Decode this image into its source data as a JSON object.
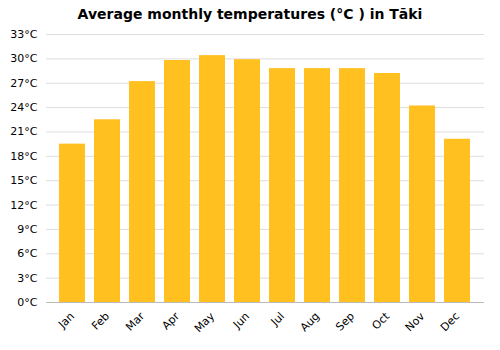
{
  "chart_data": {
    "type": "bar",
    "title": "Average monthly temperatures (°C ) in Tāki",
    "categories": [
      "Jan",
      "Feb",
      "Mar",
      "Apr",
      "May",
      "Jun",
      "Jul",
      "Aug",
      "Sep",
      "Oct",
      "Nov",
      "Dec"
    ],
    "values": [
      19.5,
      22.5,
      27.2,
      29.8,
      30.4,
      29.9,
      28.8,
      28.8,
      28.8,
      28.2,
      24.2,
      20.1
    ],
    "color": "#FFC020",
    "ylim": [
      0,
      33
    ],
    "yticks": [
      {
        "value": 0,
        "label": "0°C"
      },
      {
        "value": 3,
        "label": "3°C"
      },
      {
        "value": 6,
        "label": "6°C"
      },
      {
        "value": 9,
        "label": "9°C"
      },
      {
        "value": 12,
        "label": "12°C"
      },
      {
        "value": 15,
        "label": "15°C"
      },
      {
        "value": 18,
        "label": "18°C"
      },
      {
        "value": 21,
        "label": "21°C"
      },
      {
        "value": 24,
        "label": "24°C"
      },
      {
        "value": 27,
        "label": "27°C"
      },
      {
        "value": 30,
        "label": "30°C"
      },
      {
        "value": 33,
        "label": "33°C"
      }
    ],
    "grid": true
  }
}
